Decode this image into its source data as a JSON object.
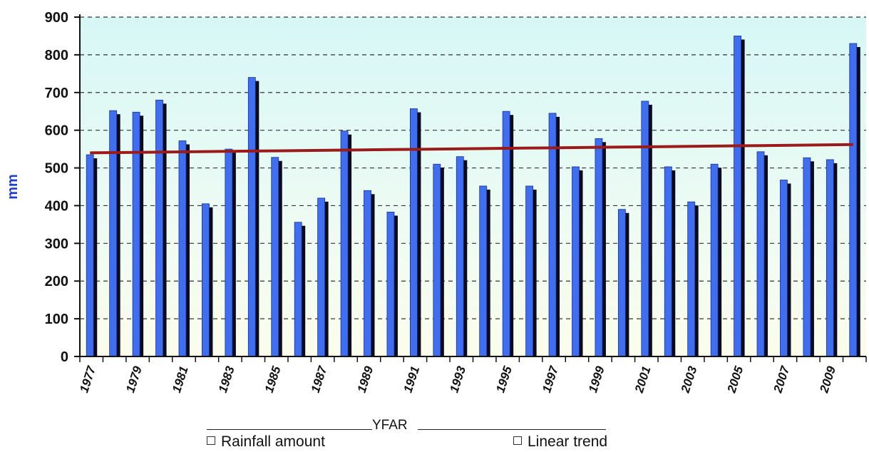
{
  "chart_data": {
    "type": "bar",
    "title": "",
    "xlabel": "YFAR",
    "ylabel": "mm",
    "ylim": [
      0,
      900
    ],
    "yticks": [
      "0",
      "100",
      "200",
      "300",
      "400",
      "500",
      "600",
      "700",
      "800",
      "900"
    ],
    "grid": true,
    "legend_position": "bottom",
    "categories": [
      "1977",
      "1978",
      "1979",
      "1980",
      "1981",
      "1982",
      "1983",
      "1984",
      "1985",
      "1986",
      "1987",
      "1988",
      "1989",
      "1990",
      "1991",
      "1992",
      "1993",
      "1994",
      "1995",
      "1996",
      "1997",
      "1998",
      "1999",
      "2000",
      "2001",
      "2002",
      "2003",
      "2004",
      "2005",
      "2006",
      "2007",
      "2008",
      "2009",
      "2010"
    ],
    "xtick_labels": [
      "1977",
      "1979",
      "1981",
      "1983",
      "1985",
      "1987",
      "1989",
      "1991",
      "1993",
      "1995",
      "1997",
      "1999",
      "2001",
      "2003",
      "2005",
      "2007",
      "2009"
    ],
    "series": [
      {
        "name": "Rainfall amount",
        "kind": "bar",
        "color": "#3f6ff0",
        "values": [
          535,
          652,
          648,
          680,
          572,
          405,
          550,
          740,
          528,
          356,
          420,
          598,
          440,
          383,
          657,
          510,
          530,
          452,
          650,
          452,
          645,
          503,
          578,
          390,
          677,
          503,
          410,
          510,
          850,
          543,
          468,
          527,
          522,
          830
        ]
      },
      {
        "name": "Linear trend",
        "kind": "line",
        "color": "#9b1b1b",
        "values": [
          540,
          540.7,
          541.3,
          542,
          542.7,
          543.3,
          544,
          544.7,
          545.3,
          546,
          546.7,
          547.3,
          548,
          548.7,
          549.3,
          550,
          550.7,
          551.3,
          552,
          552.7,
          553.3,
          554,
          554.7,
          555.3,
          556,
          556.7,
          557.3,
          558,
          558.7,
          559.3,
          560,
          560.7,
          561.3,
          562
        ]
      }
    ],
    "colors": {
      "plot_background": "#dff8f6",
      "axis": "#111111",
      "shadow": "#0a0a1a"
    }
  }
}
